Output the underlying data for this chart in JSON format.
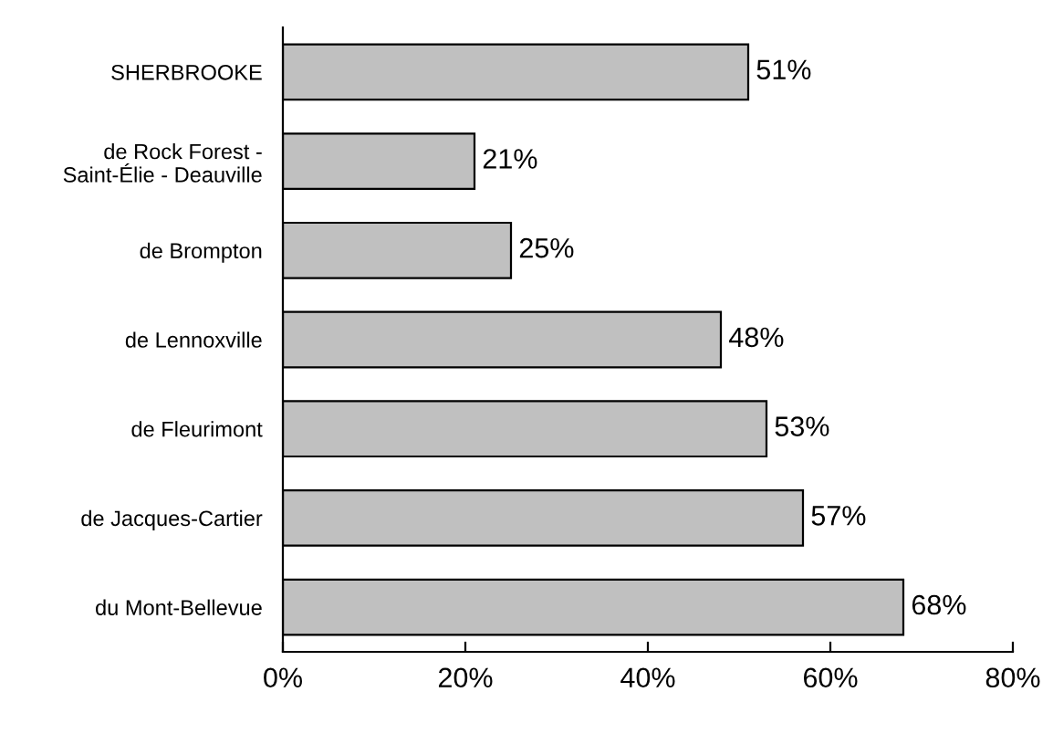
{
  "chart_data": {
    "type": "bar",
    "orientation": "horizontal",
    "categories": [
      "SHERBROOKE",
      "de Rock Forest -\nSaint-Élie - Deauville",
      "de Brompton",
      "de Lennoxville",
      "de Fleurimont",
      "de Jacques-Cartier",
      "du Mont-Bellevue"
    ],
    "values": [
      51,
      21,
      25,
      48,
      53,
      57,
      68
    ],
    "value_labels": [
      "51%",
      "21%",
      "25%",
      "48%",
      "53%",
      "57%",
      "68%"
    ],
    "color": "#c0c0c0",
    "xlim": [
      0,
      80
    ],
    "xticks": [
      {
        "value": 0,
        "label": "0%"
      },
      {
        "value": 20,
        "label": "20%"
      },
      {
        "value": 40,
        "label": "40%"
      },
      {
        "value": 60,
        "label": "60%"
      },
      {
        "value": 80,
        "label": "80%"
      }
    ],
    "grid": false,
    "legend": false
  }
}
